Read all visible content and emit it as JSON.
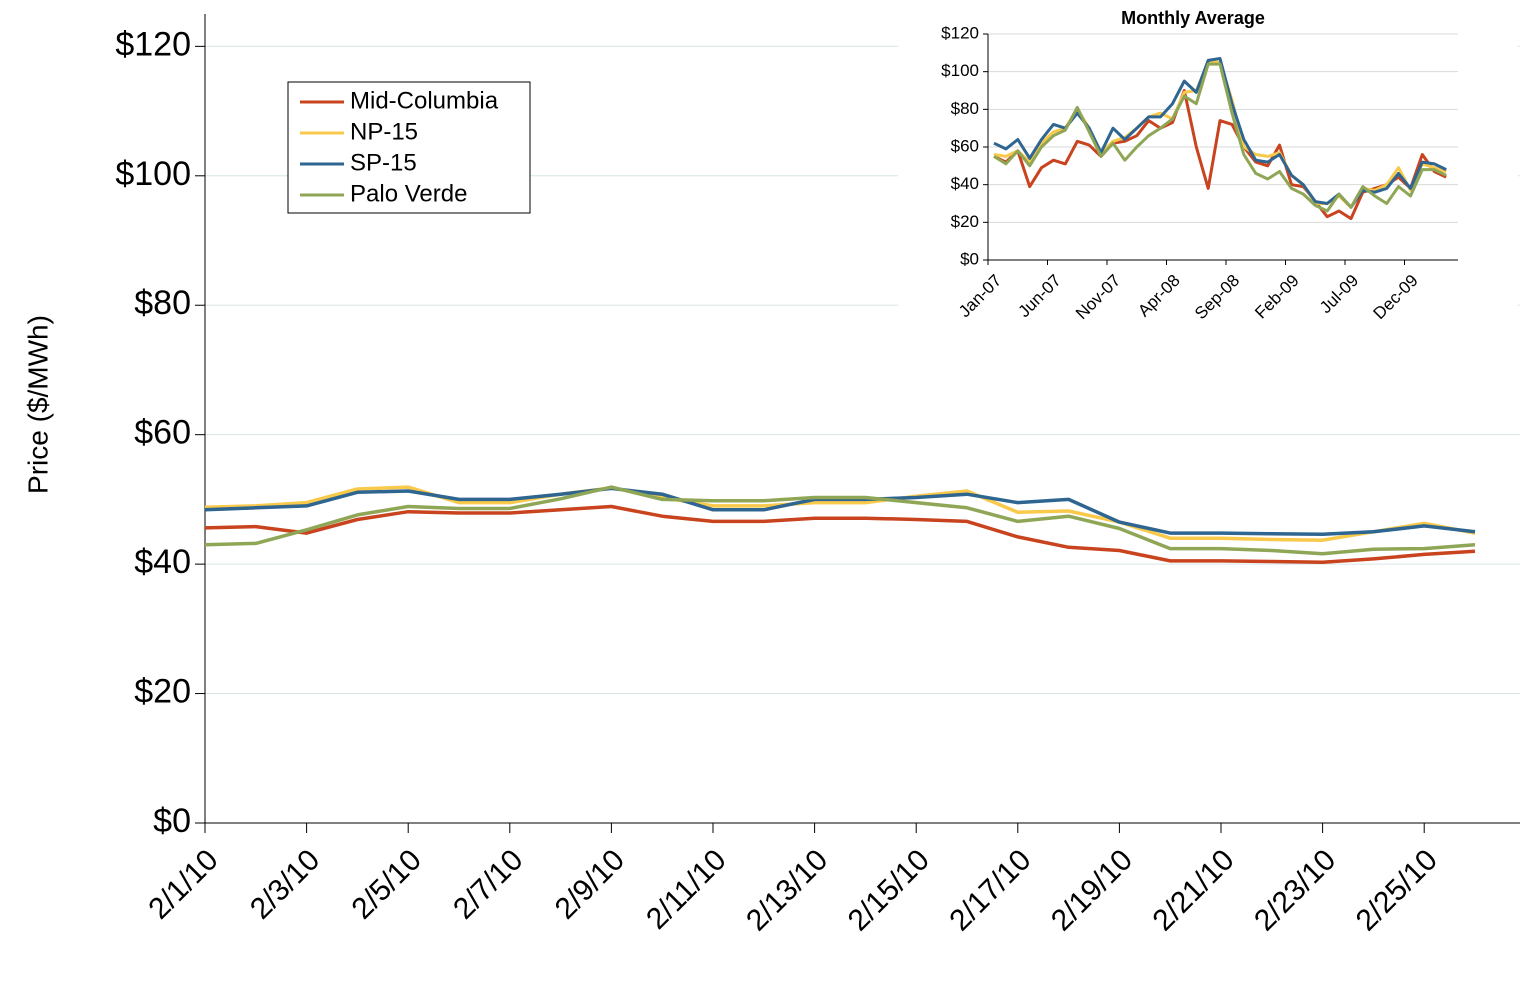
{
  "chart_data": [
    {
      "type": "line",
      "y_label": "Price ($/MWh)",
      "categories": [
        "2/1/10",
        null,
        "2/3/10",
        null,
        "2/5/10",
        null,
        "2/7/10",
        null,
        "2/9/10",
        null,
        "2/11/10",
        null,
        "2/13/10",
        null,
        "2/15/10",
        null,
        "2/17/10",
        null,
        "2/19/10",
        null,
        "2/21/10",
        null,
        "2/23/10",
        null,
        "2/25/10",
        null
      ],
      "series": [
        {
          "name": "Mid-Columbia",
          "color": "#c8431e",
          "values": [
            45.6,
            45.8,
            44.8,
            46.9,
            48.1,
            47.9,
            47.9,
            48.4,
            48.9,
            47.4,
            46.6,
            46.6,
            47.1,
            47.1,
            46.9,
            46.6,
            44.2,
            42.6,
            42.1,
            40.5,
            40.5,
            40.4,
            40.3,
            40.8,
            41.5,
            42.0
          ]
        },
        {
          "name": "NP-15",
          "color": "#f8c94a",
          "values": [
            48.8,
            49.0,
            49.5,
            51.6,
            51.9,
            49.5,
            49.5,
            50.8,
            51.8,
            50.3,
            49.0,
            49.0,
            49.5,
            49.5,
            50.5,
            51.3,
            48.0,
            48.2,
            46.5,
            44.0,
            44.0,
            43.8,
            43.7,
            45.0,
            46.3,
            44.8
          ]
        },
        {
          "name": "SP-15",
          "color": "#2e6591",
          "values": [
            48.4,
            48.7,
            49.0,
            51.1,
            51.3,
            50.0,
            50.0,
            50.8,
            51.7,
            50.8,
            48.4,
            48.4,
            50.0,
            50.0,
            50.3,
            50.8,
            49.5,
            50.0,
            46.5,
            44.8,
            44.8,
            44.7,
            44.6,
            45.0,
            45.9,
            45.0
          ]
        },
        {
          "name": "Palo Verde",
          "color": "#8fa656",
          "values": [
            43.0,
            43.2,
            45.3,
            47.6,
            48.9,
            48.6,
            48.6,
            50.1,
            51.9,
            50.0,
            49.8,
            49.8,
            50.3,
            50.3,
            49.5,
            48.7,
            46.6,
            47.4,
            45.5,
            42.4,
            42.4,
            42.1,
            41.6,
            42.3,
            42.4,
            43.0
          ]
        }
      ],
      "ylim": [
        0,
        125
      ],
      "yticks": [
        {
          "value": 0,
          "label": "$0"
        },
        {
          "value": 20,
          "label": "$20"
        },
        {
          "value": 40,
          "label": "$40"
        },
        {
          "value": 60,
          "label": "$60"
        },
        {
          "value": 80,
          "label": "$80"
        },
        {
          "value": 100,
          "label": "$100"
        },
        {
          "value": 120,
          "label": "$120"
        }
      ],
      "grid": true,
      "legend": "top-left"
    },
    {
      "type": "line",
      "title": "Monthly Average",
      "categories": [
        "Jan-07",
        null,
        null,
        null,
        null,
        "Jun-07",
        null,
        null,
        null,
        null,
        "Nov-07",
        null,
        null,
        null,
        null,
        "Apr-08",
        null,
        null,
        null,
        null,
        "Sep-08",
        null,
        null,
        null,
        null,
        "Feb-09",
        null,
        null,
        null,
        null,
        "Jul-09",
        null,
        null,
        null,
        null,
        "Dec-09",
        null,
        null,
        null
      ],
      "series": [
        {
          "color": "#c8431e",
          "values": [
            55,
            52,
            58,
            39,
            49,
            53,
            51,
            63,
            61,
            55,
            62,
            63,
            66,
            74,
            70,
            73,
            90,
            60,
            38,
            74,
            72,
            60,
            52,
            50,
            61,
            40,
            39,
            31,
            23,
            26,
            22,
            36,
            38,
            40,
            44,
            38,
            56,
            47,
            44
          ]
        },
        {
          "color": "#f8c94a",
          "values": [
            56,
            55,
            58,
            52,
            62,
            68,
            70,
            80,
            70,
            57,
            63,
            65,
            70,
            76,
            78,
            75,
            89,
            90,
            105,
            105,
            85,
            60,
            56,
            55,
            57,
            45,
            40,
            30,
            30,
            34,
            28,
            38,
            37,
            40,
            49,
            37,
            51,
            49,
            47
          ]
        },
        {
          "color": "#2e6591",
          "values": [
            62,
            59,
            64,
            54,
            64,
            72,
            70,
            78,
            70,
            57,
            70,
            64,
            70,
            76,
            76,
            83,
            95,
            89,
            106,
            107,
            83,
            64,
            53,
            52,
            56,
            45,
            40,
            31,
            30,
            35,
            28,
            37,
            36,
            38,
            46,
            38,
            52,
            51,
            48
          ]
        },
        {
          "color": "#8fa656",
          "values": [
            55,
            51,
            58,
            50,
            60,
            66,
            69,
            81,
            68,
            55,
            62,
            53,
            60,
            66,
            70,
            75,
            87,
            83,
            104,
            104,
            78,
            56,
            46,
            43,
            47,
            38,
            35,
            29,
            26,
            35,
            28,
            39,
            34,
            30,
            39,
            34,
            48,
            48,
            45
          ]
        }
      ],
      "ylim": [
        0,
        120
      ],
      "yticks": [
        {
          "value": 0,
          "label": "$0"
        },
        {
          "value": 20,
          "label": "$20"
        },
        {
          "value": 40,
          "label": "$40"
        },
        {
          "value": 60,
          "label": "$60"
        },
        {
          "value": 80,
          "label": "$80"
        },
        {
          "value": 100,
          "label": "$100"
        },
        {
          "value": 120,
          "label": "$120"
        }
      ],
      "grid": true
    }
  ]
}
